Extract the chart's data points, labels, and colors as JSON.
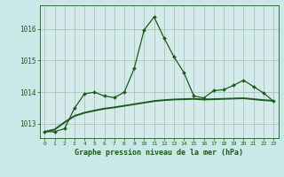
{
  "title": "Graphe pression niveau de la mer (hPa)",
  "bg_color": "#cbe8e8",
  "plot_bg_color": "#d5eaea",
  "line_color": "#1a5c1a",
  "grid_color": "#9bbfb0",
  "x_ticks": [
    0,
    1,
    2,
    3,
    4,
    5,
    6,
    7,
    8,
    9,
    10,
    11,
    12,
    13,
    14,
    15,
    16,
    17,
    18,
    19,
    20,
    21,
    22,
    23
  ],
  "y_ticks": [
    1013,
    1014,
    1015,
    1016
  ],
  "ylim": [
    1012.55,
    1016.75
  ],
  "xlim": [
    -0.5,
    23.5
  ],
  "series1": [
    1012.75,
    1012.75,
    1012.85,
    1013.5,
    1013.95,
    1014.0,
    1013.88,
    1013.83,
    1014.0,
    1014.75,
    1015.97,
    1016.38,
    1015.72,
    1015.12,
    1014.62,
    1013.88,
    1013.82,
    1014.05,
    1014.08,
    1014.22,
    1014.38,
    1014.18,
    1013.98,
    1013.72
  ],
  "series2": [
    1012.75,
    1012.82,
    1013.05,
    1013.25,
    1013.35,
    1013.42,
    1013.48,
    1013.52,
    1013.57,
    1013.62,
    1013.67,
    1013.72,
    1013.75,
    1013.77,
    1013.78,
    1013.79,
    1013.77,
    1013.78,
    1013.79,
    1013.8,
    1013.81,
    1013.78,
    1013.75,
    1013.73
  ]
}
